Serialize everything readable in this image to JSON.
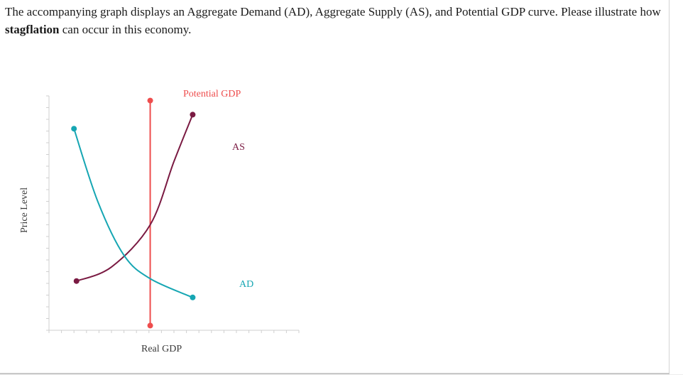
{
  "question": {
    "text_part1": "The accompanying graph displays an Aggregate Demand (AD), Aggregate Supply (AS), and Potential GDP curve. Please illustrate how ",
    "bold_word": "stagflation",
    "text_part2": " can occur in this economy."
  },
  "chart_data": {
    "type": "line",
    "xlabel": "Real GDP",
    "ylabel": "Price Level",
    "series": [
      {
        "name": "Potential GDP",
        "color": "#ee4d4d",
        "points": [
          [
            40.5,
            98
          ],
          [
            40.5,
            2
          ]
        ]
      },
      {
        "name": "AS",
        "color": "#7a1a42",
        "points": [
          [
            11,
            21
          ],
          [
            25,
            27
          ],
          [
            40.5,
            45
          ],
          [
            50,
            72
          ],
          [
            57.5,
            92
          ]
        ]
      },
      {
        "name": "AD",
        "color": "#16a6b3",
        "points": [
          [
            10,
            86
          ],
          [
            19.5,
            55
          ],
          [
            30,
            32
          ],
          [
            40.5,
            22
          ],
          [
            57.5,
            14
          ]
        ]
      }
    ],
    "grid": false,
    "colors": {
      "axis": "#cfcfcf",
      "potential_gdp": "#ee4d4d",
      "as": "#7a1a42",
      "ad": "#16a6b3"
    }
  }
}
